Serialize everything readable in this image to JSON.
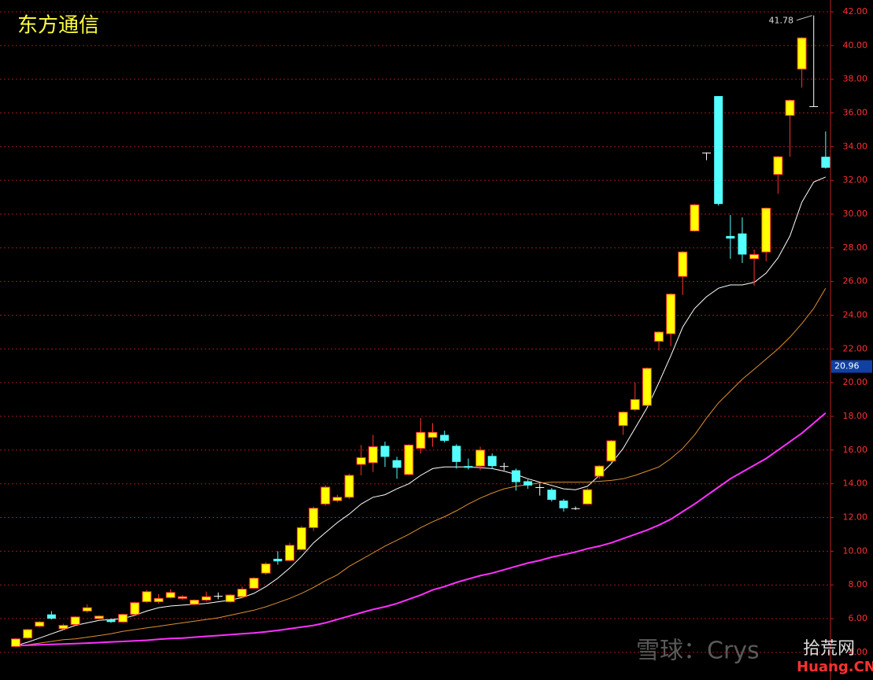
{
  "chart_data": {
    "type": "candlestick",
    "title": "东方通信",
    "open": [
      4.35,
      4.85,
      5.55,
      6.25,
      5.4,
      5.65,
      6.45,
      6.0,
      5.95,
      5.8,
      6.25,
      7.0,
      7.0,
      7.25,
      7.2,
      6.85,
      7.1,
      7.35,
      7.0,
      7.3,
      7.8,
      8.7,
      9.55,
      9.45,
      10.1,
      11.4,
      12.8,
      13.0,
      13.2,
      15.15,
      15.25,
      16.25,
      15.4,
      14.55,
      16.1,
      16.75,
      16.9,
      16.25,
      15.05,
      15.05,
      15.65,
      15.05,
      14.8,
      14.15,
      13.8,
      13.65,
      13.0,
      12.55,
      12.8,
      14.45,
      15.35,
      17.45,
      18.4,
      18.65,
      22.45,
      22.9,
      26.3,
      29.0,
      33.65,
      37.0,
      28.7,
      28.85,
      27.35,
      27.75,
      32.35,
      35.85,
      38.6,
      36.4,
      33.4
    ],
    "high": [
      4.85,
      5.4,
      5.85,
      6.45,
      5.7,
      6.15,
      6.85,
      6.2,
      6.0,
      6.3,
      7.0,
      7.7,
      7.45,
      7.75,
      7.4,
      7.15,
      7.6,
      7.55,
      7.45,
      7.9,
      8.45,
      9.35,
      10.0,
      10.5,
      11.5,
      12.65,
      13.9,
      13.35,
      14.6,
      16.3,
      16.9,
      16.5,
      15.6,
      16.35,
      17.9,
      17.6,
      17.15,
      16.35,
      15.5,
      16.2,
      15.8,
      15.25,
      14.9,
      14.25,
      14.0,
      13.75,
      13.1,
      12.65,
      13.75,
      15.1,
      16.6,
      18.3,
      20.0,
      20.9,
      23.05,
      25.3,
      27.8,
      30.6,
      33.65,
      37.0,
      29.95,
      29.8,
      27.9,
      30.4,
      33.45,
      36.8,
      40.5,
      41.78,
      34.9
    ],
    "low": [
      4.3,
      4.8,
      5.5,
      5.95,
      5.3,
      5.6,
      6.35,
      5.95,
      5.75,
      5.75,
      6.2,
      6.95,
      6.9,
      7.2,
      7.1,
      6.8,
      7.0,
      7.15,
      6.95,
      7.2,
      7.75,
      8.6,
      9.2,
      9.4,
      10.05,
      11.2,
      12.7,
      12.9,
      13.1,
      14.5,
      14.7,
      15.0,
      14.3,
      14.5,
      15.8,
      16.2,
      16.45,
      14.9,
      14.85,
      14.8,
      14.9,
      14.8,
      13.6,
      13.7,
      13.3,
      12.95,
      12.35,
      12.45,
      12.75,
      14.3,
      15.25,
      16.9,
      18.3,
      18.6,
      21.9,
      22.15,
      25.2,
      28.95,
      33.2,
      30.5,
      27.35,
      27.1,
      25.75,
      27.2,
      31.2,
      33.4,
      37.5,
      36.4,
      32.7
    ],
    "close": [
      4.8,
      5.35,
      5.8,
      6.0,
      5.6,
      6.1,
      6.65,
      6.15,
      5.8,
      6.25,
      6.95,
      7.6,
      7.2,
      7.55,
      7.3,
      7.1,
      7.3,
      7.35,
      7.4,
      7.75,
      8.4,
      9.25,
      9.4,
      10.35,
      11.4,
      12.55,
      13.8,
      13.2,
      14.5,
      15.55,
      16.2,
      15.6,
      14.95,
      16.3,
      17.05,
      17.05,
      16.55,
      15.3,
      14.95,
      16.0,
      15.05,
      15.05,
      14.1,
      13.9,
      13.8,
      13.05,
      12.55,
      12.55,
      13.65,
      15.05,
      16.55,
      18.25,
      19.0,
      20.85,
      23.0,
      25.25,
      27.75,
      30.55,
      33.65,
      30.6,
      28.55,
      27.6,
      27.6,
      30.35,
      33.4,
      36.75,
      40.45,
      36.4,
      32.75
    ],
    "up_color": "#ffff00",
    "up_border": "#ff3030",
    "down_color": "#54ffff",
    "flat_color": "#ffffff",
    "max_label_index": 67,
    "series": [
      {
        "color": "#ffffff",
        "values": [
          4.4,
          4.6,
          4.85,
          5.1,
          5.35,
          5.6,
          5.75,
          5.9,
          5.95,
          6.0,
          6.2,
          6.45,
          6.65,
          6.75,
          6.8,
          6.85,
          6.9,
          7.0,
          7.1,
          7.25,
          7.5,
          7.9,
          8.4,
          9.0,
          9.7,
          10.5,
          11.1,
          11.7,
          12.2,
          12.8,
          13.2,
          13.35,
          13.7,
          14.0,
          14.5,
          14.9,
          15.0,
          15.0,
          15.0,
          14.95,
          14.9,
          14.75,
          14.55,
          14.3,
          14.1,
          13.9,
          13.7,
          13.65,
          13.85,
          14.5,
          15.2,
          16.1,
          17.3,
          18.5,
          20.0,
          21.6,
          23.3,
          24.4,
          25.1,
          25.6,
          25.8,
          25.8,
          25.95,
          26.5,
          27.4,
          28.7,
          30.7,
          31.9,
          32.2
        ]
      },
      {
        "color": "#e09030",
        "values": [
          4.4,
          4.45,
          4.55,
          4.65,
          4.75,
          4.8,
          4.9,
          5.0,
          5.1,
          5.25,
          5.35,
          5.45,
          5.55,
          5.65,
          5.75,
          5.85,
          5.95,
          6.05,
          6.2,
          6.35,
          6.5,
          6.7,
          6.95,
          7.2,
          7.5,
          7.85,
          8.25,
          8.6,
          9.1,
          9.5,
          9.9,
          10.3,
          10.65,
          11.0,
          11.4,
          11.75,
          12.05,
          12.4,
          12.8,
          13.15,
          13.45,
          13.7,
          13.85,
          13.95,
          14.05,
          14.1,
          14.1,
          14.1,
          14.1,
          14.15,
          14.2,
          14.3,
          14.5,
          14.75,
          15.0,
          15.5,
          16.1,
          16.9,
          17.9,
          18.8,
          19.5,
          20.2,
          20.8,
          21.4,
          22.0,
          22.7,
          23.5,
          24.4,
          25.6
        ]
      },
      {
        "color": "#ff30ff",
        "values": [
          4.4,
          4.42,
          4.45,
          4.47,
          4.5,
          4.52,
          4.55,
          4.58,
          4.62,
          4.65,
          4.68,
          4.72,
          4.78,
          4.82,
          4.85,
          4.9,
          4.95,
          5.0,
          5.05,
          5.1,
          5.15,
          5.22,
          5.3,
          5.4,
          5.5,
          5.6,
          5.75,
          5.95,
          6.15,
          6.35,
          6.55,
          6.7,
          6.9,
          7.15,
          7.4,
          7.7,
          7.9,
          8.15,
          8.35,
          8.55,
          8.7,
          8.9,
          9.1,
          9.3,
          9.45,
          9.65,
          9.8,
          9.95,
          10.15,
          10.3,
          10.5,
          10.75,
          11.0,
          11.25,
          11.55,
          11.9,
          12.35,
          12.8,
          13.3,
          13.8,
          14.3,
          14.7,
          15.1,
          15.5,
          16.0,
          16.5,
          17.0,
          17.6,
          18.2
        ]
      }
    ],
    "current_price": 20.96,
    "ylim": [
      2.36,
      42.7
    ],
    "yticks": [
      {
        "value": 4,
        "label": "4.00"
      },
      {
        "value": 6,
        "label": "6.00"
      },
      {
        "value": 8,
        "label": "8.00"
      },
      {
        "value": 10,
        "label": "10.00"
      },
      {
        "value": 12,
        "label": "12.00"
      },
      {
        "value": 14,
        "label": "14.00"
      },
      {
        "value": 16,
        "label": "16.00"
      },
      {
        "value": 18,
        "label": "18.00"
      },
      {
        "value": 20,
        "label": "20.00"
      },
      {
        "value": 22,
        "label": "22.00"
      },
      {
        "value": 24,
        "label": "24.00"
      },
      {
        "value": 26,
        "label": "26.00"
      },
      {
        "value": 28,
        "label": "28.00"
      },
      {
        "value": 30,
        "label": "30.00"
      },
      {
        "value": 32,
        "label": "32.00"
      },
      {
        "value": 34,
        "label": "34.00"
      },
      {
        "value": 36,
        "label": "36.00"
      },
      {
        "value": 38,
        "label": "38.00"
      },
      {
        "value": 40,
        "label": "40.00"
      },
      {
        "value": 42,
        "label": "42.00"
      }
    ],
    "grid": true
  },
  "watermark": {
    "source": "雪球：Crys",
    "site": "拾荒网",
    "domain": "Huang.CN"
  }
}
